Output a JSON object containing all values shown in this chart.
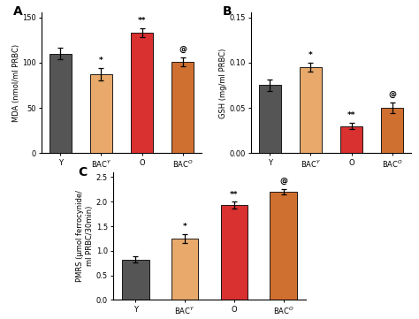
{
  "panel_A": {
    "title": "A",
    "categories": [
      "Y",
      "BAC$^Y$",
      "O",
      "BAC$^O$"
    ],
    "values": [
      110,
      87,
      133,
      101
    ],
    "errors": [
      6,
      7,
      5,
      5
    ],
    "colors": [
      "#555555",
      "#E8A96A",
      "#D93030",
      "#D07030"
    ],
    "ylabel": "MDA (nmol/ml PRBC)",
    "ylim": [
      0,
      155
    ],
    "yticks": [
      0,
      50,
      100,
      150
    ],
    "sig_labels": [
      "",
      "*",
      "**",
      "@"
    ]
  },
  "panel_B": {
    "title": "B",
    "categories": [
      "Y",
      "BAC$^Y$",
      "O",
      "BAC$^O$"
    ],
    "values": [
      0.075,
      0.095,
      0.03,
      0.05
    ],
    "errors": [
      0.006,
      0.005,
      0.003,
      0.006
    ],
    "colors": [
      "#555555",
      "#E8A96A",
      "#D93030",
      "#D07030"
    ],
    "ylabel": "GSH (mg/ml PRBC)",
    "ylim": [
      0,
      0.155
    ],
    "yticks": [
      0.0,
      0.05,
      0.1,
      0.15
    ],
    "sig_labels": [
      "",
      "*",
      "**",
      "@"
    ]
  },
  "panel_C": {
    "title": "C",
    "categories": [
      "Y",
      "BAC$^Y$",
      "O",
      "BAC$^O$"
    ],
    "values": [
      0.82,
      1.25,
      1.93,
      2.2
    ],
    "errors": [
      0.06,
      0.09,
      0.07,
      0.06
    ],
    "colors": [
      "#555555",
      "#E8A96A",
      "#D93030",
      "#D07030"
    ],
    "ylabel": "PMRS (μmol ferrocynide/\nml PRBC/30min)",
    "ylim": [
      0,
      2.6
    ],
    "yticks": [
      0.0,
      0.5,
      1.0,
      1.5,
      2.0,
      2.5
    ],
    "sig_labels": [
      "",
      "*",
      "**",
      "@"
    ]
  }
}
